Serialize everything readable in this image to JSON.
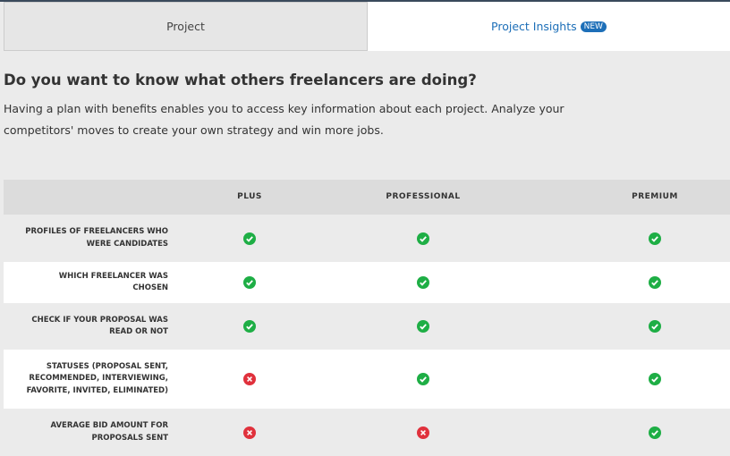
{
  "tabs": [
    {
      "label": "Project",
      "active": false
    },
    {
      "label": "Project Insights",
      "badge": "NEW",
      "active": true
    }
  ],
  "heading": "Do you want to know what others freelancers are doing?",
  "description": "Having a plan with benefits enables you to access key information about each project. Analyze your competitors' moves to create your own strategy and win more jobs.",
  "table": {
    "columns": [
      "PLUS",
      "PROFESSIONAL",
      "PREMIUM"
    ],
    "rows": [
      {
        "feature": "PROFILES OF FREELANCERS WHO WERE CANDIDATES",
        "values": [
          true,
          true,
          true
        ]
      },
      {
        "feature": "WHICH FREELANCER WAS CHOSEN",
        "values": [
          true,
          true,
          true
        ]
      },
      {
        "feature": "CHECK IF YOUR PROPOSAL WAS READ OR NOT",
        "values": [
          true,
          true,
          true
        ]
      },
      {
        "feature": "STATUSES (PROPOSAL SENT, RECOMMENDED, INTERVIEWING, FAVORITE, INVITED, ELIMINATED)",
        "values": [
          false,
          true,
          true
        ]
      },
      {
        "feature": "AVERAGE BID AMOUNT FOR PROPOSALS SENT",
        "values": [
          false,
          false,
          true
        ]
      }
    ]
  }
}
